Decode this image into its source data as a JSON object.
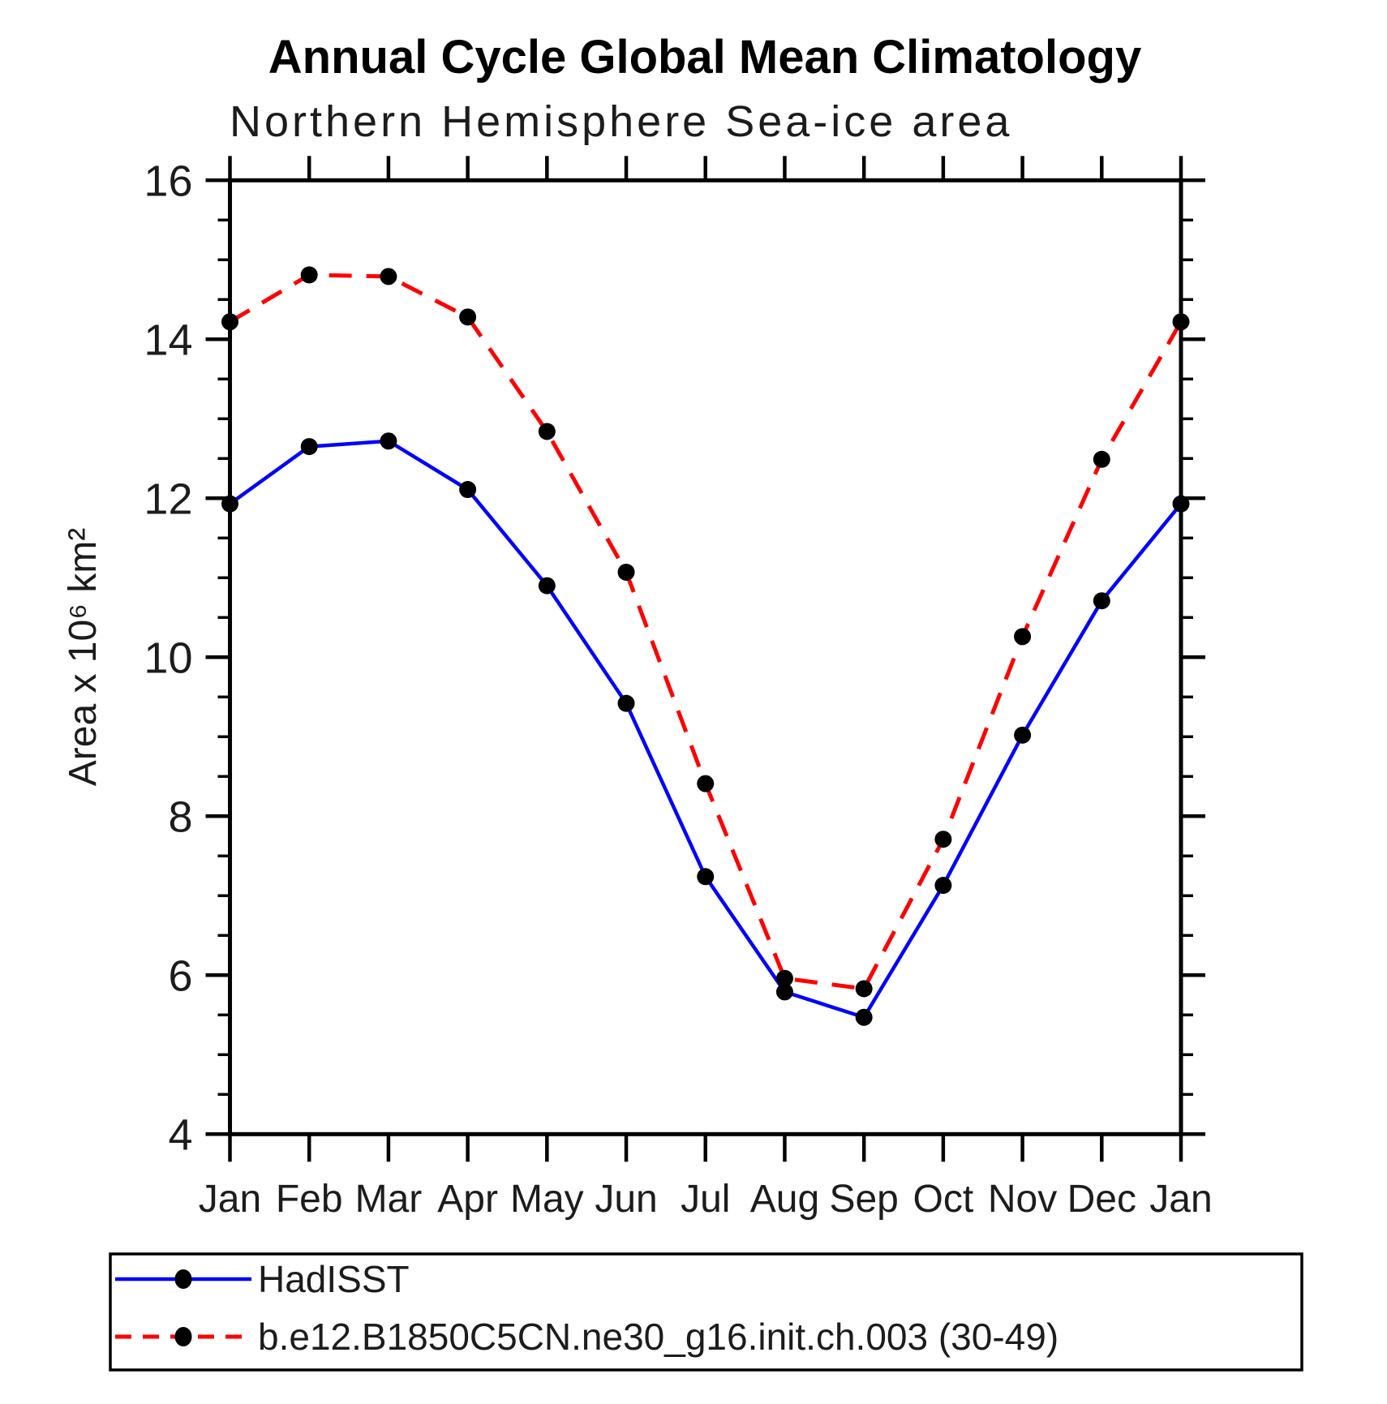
{
  "chart_data": {
    "type": "line",
    "title": "Annual Cycle Global Mean Climatology",
    "subtitle": "Northern Hemisphere Sea-ice area",
    "ylabel": "Area x 10⁶ km²",
    "xlabel": "",
    "categories": [
      "Jan",
      "Feb",
      "Mar",
      "Apr",
      "May",
      "Jun",
      "Jul",
      "Aug",
      "Sep",
      "Oct",
      "Nov",
      "Dec",
      "Jan"
    ],
    "ylim": [
      4,
      16
    ],
    "y_major_ticks": [
      4,
      6,
      8,
      10,
      12,
      14,
      16
    ],
    "y_minor_step": 0.5,
    "grid": false,
    "legend_position": "bottom-box",
    "axis_color": "#000000",
    "marker_color": "#000000",
    "series": [
      {
        "name": "HadISST",
        "color": "#0000ff",
        "style": "solid",
        "marker": "circle",
        "values": [
          11.93,
          12.65,
          12.72,
          12.11,
          10.9,
          9.42,
          7.24,
          5.79,
          5.47,
          7.13,
          9.02,
          10.71,
          11.93
        ]
      },
      {
        "name": "b.e12.B1850C5CN.ne30_g16.init.ch.003 (30-49)",
        "color": "#ff0000",
        "style": "dashed",
        "marker": "circle",
        "values": [
          14.22,
          14.81,
          14.79,
          14.28,
          12.84,
          11.07,
          8.41,
          5.96,
          5.83,
          7.71,
          10.26,
          12.49,
          14.22
        ]
      }
    ]
  }
}
